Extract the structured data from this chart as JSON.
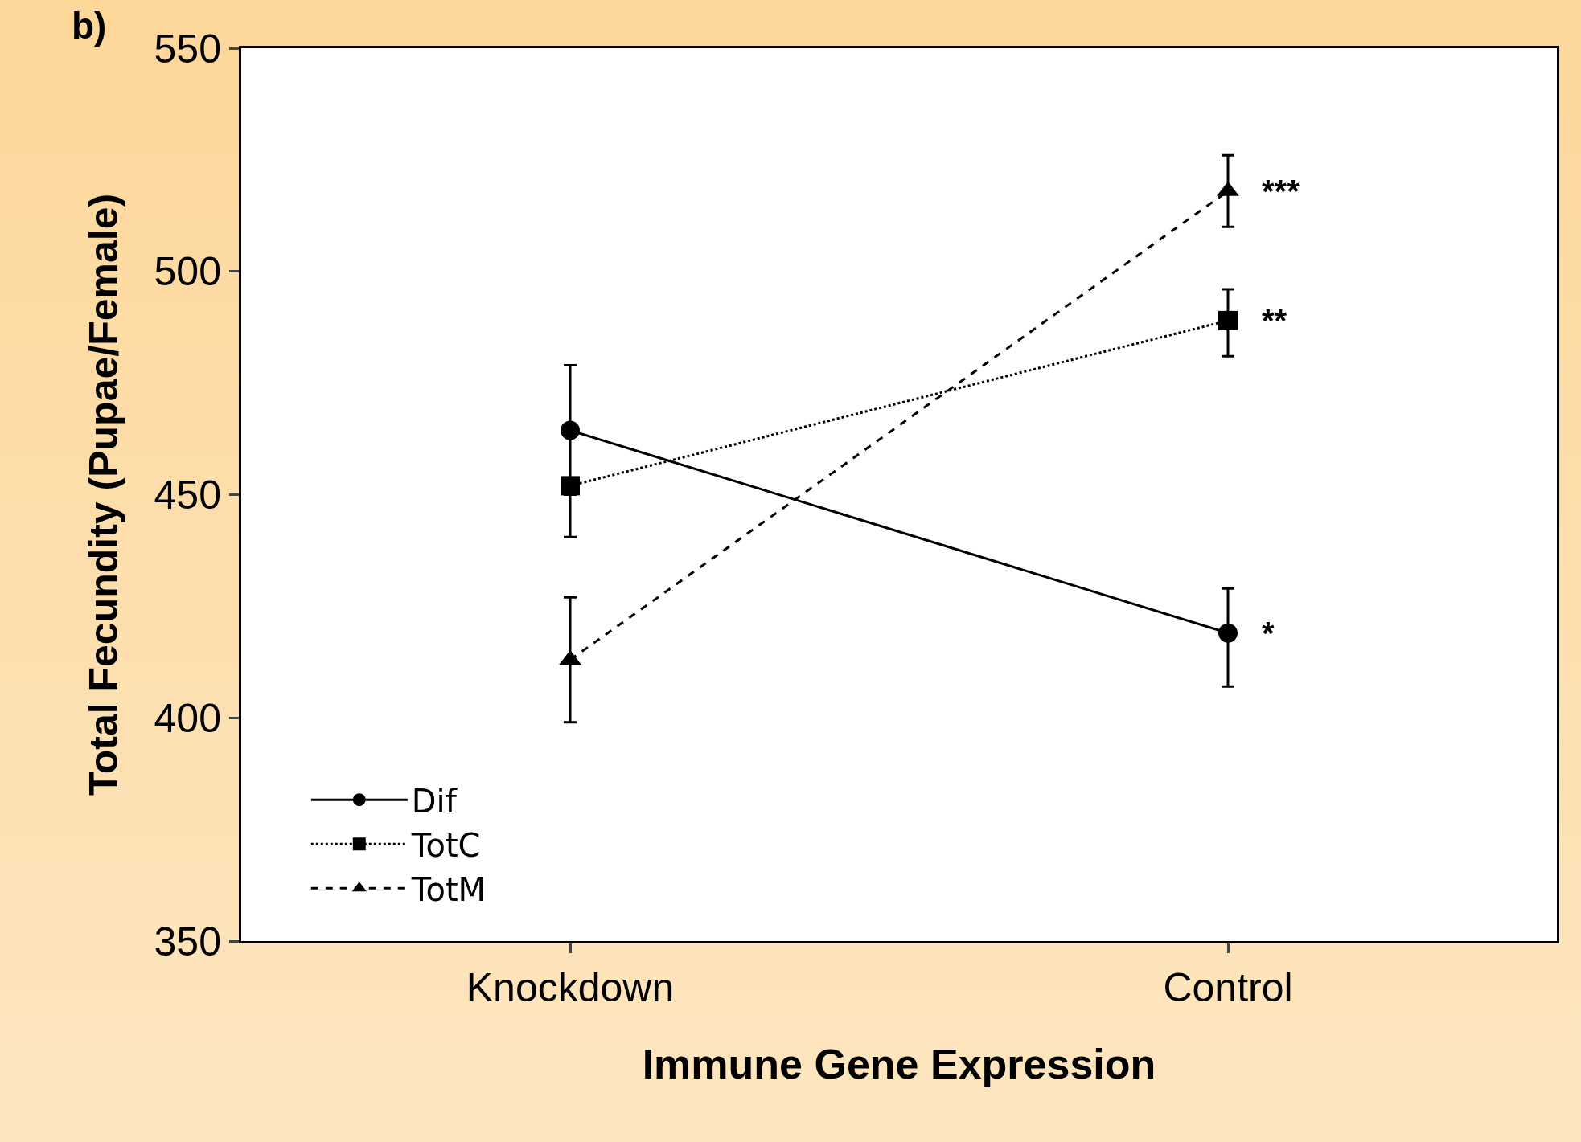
{
  "chart_data": {
    "type": "line",
    "ylabel": "Total Fecundity (Pupae/Female)",
    "xlabel": "Immune Gene Expression",
    "categories": [
      "Knockdown",
      "Control"
    ],
    "series": [
      {
        "name": "Dif",
        "color": "#000000",
        "values": [
          464.4,
          419
        ],
        "errors": [
          [
            450,
            479
          ],
          [
            407,
            429
          ]
        ],
        "marker": "circle",
        "line_style": "solid"
      },
      {
        "name": "TotC",
        "color": "#000000",
        "values": [
          452,
          489
        ],
        "errors": [
          [
            440.5,
            452
          ],
          [
            481,
            496
          ]
        ],
        "marker": "square",
        "line_style": "dotted"
      },
      {
        "name": "TotM",
        "color": "#000000",
        "values": [
          413,
          518
        ],
        "errors": [
          [
            399,
            427
          ],
          [
            510,
            526
          ]
        ],
        "marker": "triangle",
        "line_style": "dashed"
      }
    ],
    "ylim": [
      350,
      550
    ],
    "yticks": [
      350,
      400,
      450,
      500,
      550
    ],
    "grid": false,
    "legend": "bottom left",
    "annotations": [
      "b)",
      {
        "text": "***",
        "x": "Control",
        "y": 518
      },
      {
        "text": "**",
        "x": "Control",
        "y": 489
      },
      {
        "text": "*",
        "x": "Control",
        "y": 419
      }
    ]
  }
}
